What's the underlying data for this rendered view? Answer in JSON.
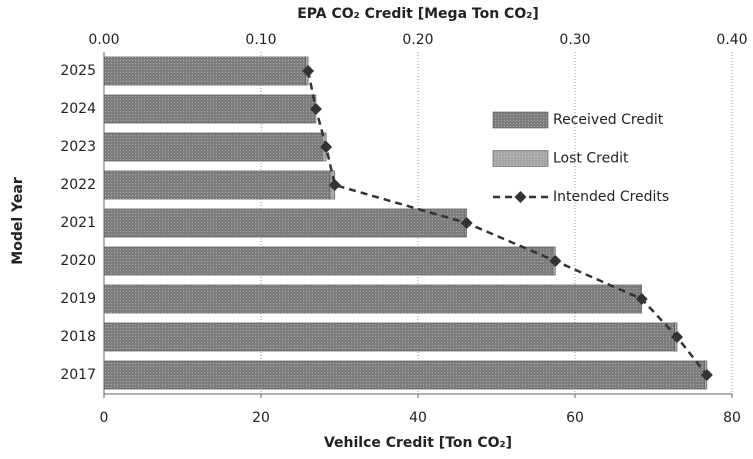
{
  "chart_data": {
    "type": "bar",
    "orientation": "horizontal",
    "stacked": true,
    "title_top": "EPA CO₂ Credit [Mega Ton CO₂]",
    "xlabel": "Vehilce Credit [Ton CO₂]",
    "ylabel": "Model Year",
    "categories": [
      "2025",
      "2024",
      "2023",
      "2022",
      "2021",
      "2020",
      "2019",
      "2018",
      "2017"
    ],
    "series": [
      {
        "name": "Received Credit",
        "type": "bar",
        "color": "#7d7d7d",
        "values": [
          25.7,
          26.8,
          27.8,
          28.8,
          46,
          57.2,
          68.3,
          72.7,
          76.5
        ]
      },
      {
        "name": "Lost Credit",
        "type": "bar",
        "color": "#a6a6a6",
        "values": [
          0.3,
          0.2,
          0.5,
          0.6,
          0.2,
          0.3,
          0.2,
          0.3,
          0.3
        ]
      },
      {
        "name": "Intended Credits",
        "type": "line",
        "color": "#333333",
        "values": [
          26,
          27,
          28.3,
          29.4,
          46.2,
          57.5,
          68.5,
          73,
          76.8
        ]
      }
    ],
    "xlim": [
      0,
      80
    ],
    "xticks": [
      0,
      20,
      40,
      60,
      80
    ],
    "x2lim": [
      0,
      0.4
    ],
    "x2ticks": [
      {
        "value": 0,
        "label": "0.00"
      },
      {
        "value": 0.1,
        "label": "0.10"
      },
      {
        "value": 0.2,
        "label": "0.20"
      },
      {
        "value": 0.3,
        "label": "0.30"
      },
      {
        "value": 0.4,
        "label": "0.40"
      }
    ],
    "grid": true,
    "legend": "upper right"
  }
}
